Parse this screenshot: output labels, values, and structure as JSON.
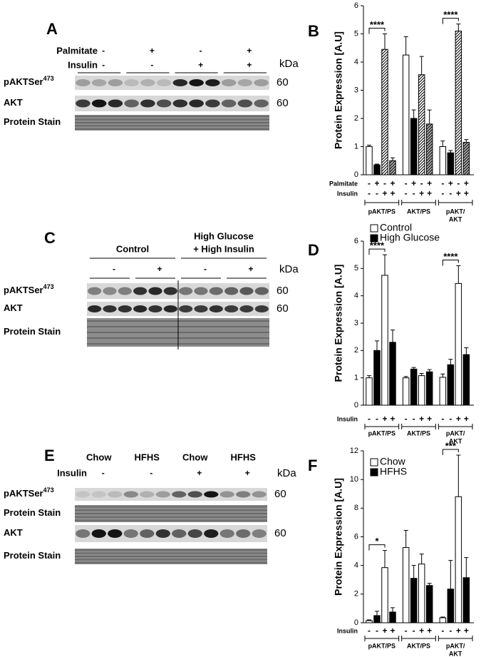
{
  "blots": [
    {
      "panel": "A",
      "headers": [
        {
          "label": "Palmitate",
          "signs": [
            "-",
            "+",
            "-",
            "+"
          ]
        },
        {
          "label": "Insulin",
          "signs": [
            "-",
            "-",
            "+",
            "+"
          ]
        }
      ],
      "kda": "kDa",
      "rows": [
        {
          "label": "pAKTSer",
          "sup": "473",
          "kda": "60"
        },
        {
          "label": "AKT",
          "kda": "60"
        },
        {
          "label": "Protein Stain"
        }
      ]
    },
    {
      "panel": "C",
      "groups": [
        [
          "Control"
        ],
        [
          "High Glucose",
          "+ High Insulin"
        ]
      ],
      "headers": [
        {
          "signs": [
            "-",
            "+",
            "-",
            "+"
          ]
        }
      ],
      "kda": "kDa",
      "rows": [
        {
          "label": "pAKTSer",
          "sup": "473",
          "kda": "60"
        },
        {
          "label": "AKT",
          "kda": "60"
        },
        {
          "label": "Protein Stain"
        }
      ]
    },
    {
      "panel": "E",
      "groups": [
        [
          "Chow"
        ],
        [
          "HFHS"
        ],
        [
          "Chow"
        ],
        [
          "HFHS"
        ]
      ],
      "headers": [
        {
          "label": "Insulin",
          "signs": [
            "-",
            "-",
            "+",
            "+"
          ]
        }
      ],
      "kda": "kDa",
      "rows": [
        {
          "label": "pAKTSer",
          "sup": "473",
          "kda": "60"
        },
        {
          "label": "Protein Stain"
        },
        {
          "label": "AKT",
          "kda": "60"
        },
        {
          "label": "Protein Stain"
        }
      ]
    }
  ],
  "chart_data": [
    {
      "type": "bar",
      "panel": "B",
      "ylabel": "Protein Expression [A.U]",
      "groups": [
        [
          "pAKT/PS"
        ],
        [
          "AKT/PS"
        ],
        [
          "pAKT/",
          "AKT"
        ]
      ],
      "conditions": [
        {
          "label": "Palmitate",
          "signs": [
            "-",
            "+",
            "-",
            "+"
          ]
        },
        {
          "label": "Insulin",
          "signs": [
            "-",
            "-",
            "+",
            "+"
          ]
        }
      ],
      "series": [
        {
          "color": "#ffffff",
          "values": [
            1.0,
            4.25,
            1.0
          ],
          "errors": [
            0.05,
            0.65,
            0.2
          ]
        },
        {
          "color": "#000000",
          "values": [
            0.35,
            2.0,
            0.78
          ],
          "errors": [
            0.03,
            0.3,
            0.08
          ]
        },
        {
          "color": "#ffffff",
          "hatch": true,
          "values": [
            4.45,
            3.55,
            5.1
          ],
          "errors": [
            0.55,
            0.65,
            0.25
          ]
        },
        {
          "color": "#b0b0b0",
          "hatch": true,
          "values": [
            0.5,
            1.8,
            1.15
          ],
          "errors": [
            0.1,
            0.5,
            0.1
          ]
        }
      ],
      "annotations": [
        {
          "text": "****",
          "group": 0,
          "series": [
            0,
            2
          ]
        },
        {
          "text": "****",
          "group": 2,
          "series": [
            0,
            2
          ]
        }
      ],
      "ylim": [
        0,
        6
      ],
      "yticks": [
        0,
        1,
        2,
        3,
        4,
        5,
        6
      ]
    },
    {
      "type": "bar",
      "panel": "D",
      "ylabel": "Protein Expression [A.U]",
      "groups": [
        [
          "pAKT/PS"
        ],
        [
          "AKT/PS"
        ],
        [
          "pAKT/",
          "AKT"
        ]
      ],
      "conditions": [
        {
          "label": "Insulin",
          "signs": [
            "-",
            "-",
            "+",
            "+"
          ]
        }
      ],
      "legend": [
        {
          "name": "Control",
          "color": "#ffffff"
        },
        {
          "name": "High Glucose",
          "color": "#000000"
        }
      ],
      "series": [
        {
          "color": "#ffffff",
          "values": [
            1.0,
            1.0,
            1.02
          ],
          "errors": [
            0.08,
            0.05,
            0.12
          ]
        },
        {
          "color": "#000000",
          "values": [
            2.0,
            1.32,
            1.48
          ],
          "errors": [
            0.35,
            0.06,
            0.2
          ]
        },
        {
          "color": "#ffffff",
          "values": [
            4.75,
            1.08,
            4.45
          ],
          "errors": [
            0.75,
            0.08,
            0.65
          ]
        },
        {
          "color": "#000000",
          "values": [
            2.3,
            1.22,
            1.85
          ],
          "errors": [
            0.45,
            0.08,
            0.25
          ]
        }
      ],
      "annotations": [
        {
          "text": "****",
          "group": 0,
          "series": [
            0,
            2
          ]
        },
        {
          "text": "****",
          "group": 2,
          "series": [
            0,
            2
          ]
        }
      ],
      "ylim": [
        0,
        6
      ],
      "yticks": [
        0,
        1,
        2,
        3,
        4,
        5,
        6
      ]
    },
    {
      "type": "bar",
      "panel": "F",
      "ylabel": "Protein Expression [A.U]",
      "groups": [
        [
          "pAKT/PS"
        ],
        [
          "AKT/PS"
        ],
        [
          "pAKT/",
          "AKT"
        ]
      ],
      "conditions": [
        {
          "label": "Insulin",
          "signs": [
            "-",
            "-",
            "+",
            "+"
          ]
        }
      ],
      "legend": [
        {
          "name": "Chow",
          "color": "#ffffff"
        },
        {
          "name": "HFHS",
          "color": "#000000"
        }
      ],
      "series": [
        {
          "color": "#ffffff",
          "values": [
            0.15,
            5.25,
            0.35
          ],
          "errors": [
            0.05,
            1.2,
            0.05
          ]
        },
        {
          "color": "#000000",
          "values": [
            0.5,
            3.1,
            2.35
          ],
          "errors": [
            0.3,
            0.9,
            2.0
          ]
        },
        {
          "color": "#ffffff",
          "values": [
            3.85,
            4.1,
            8.8
          ],
          "errors": [
            1.2,
            0.7,
            2.9
          ]
        },
        {
          "color": "#000000",
          "values": [
            0.75,
            2.6,
            3.15
          ],
          "errors": [
            0.3,
            0.15,
            1.4
          ]
        }
      ],
      "annotations": [
        {
          "text": "*",
          "group": 0,
          "series": [
            0,
            2
          ]
        },
        {
          "text": "***",
          "group": 2,
          "series": [
            0,
            2
          ]
        }
      ],
      "ylim": [
        0,
        12
      ],
      "yticks": [
        0,
        2,
        4,
        6,
        8,
        10,
        12
      ]
    }
  ]
}
